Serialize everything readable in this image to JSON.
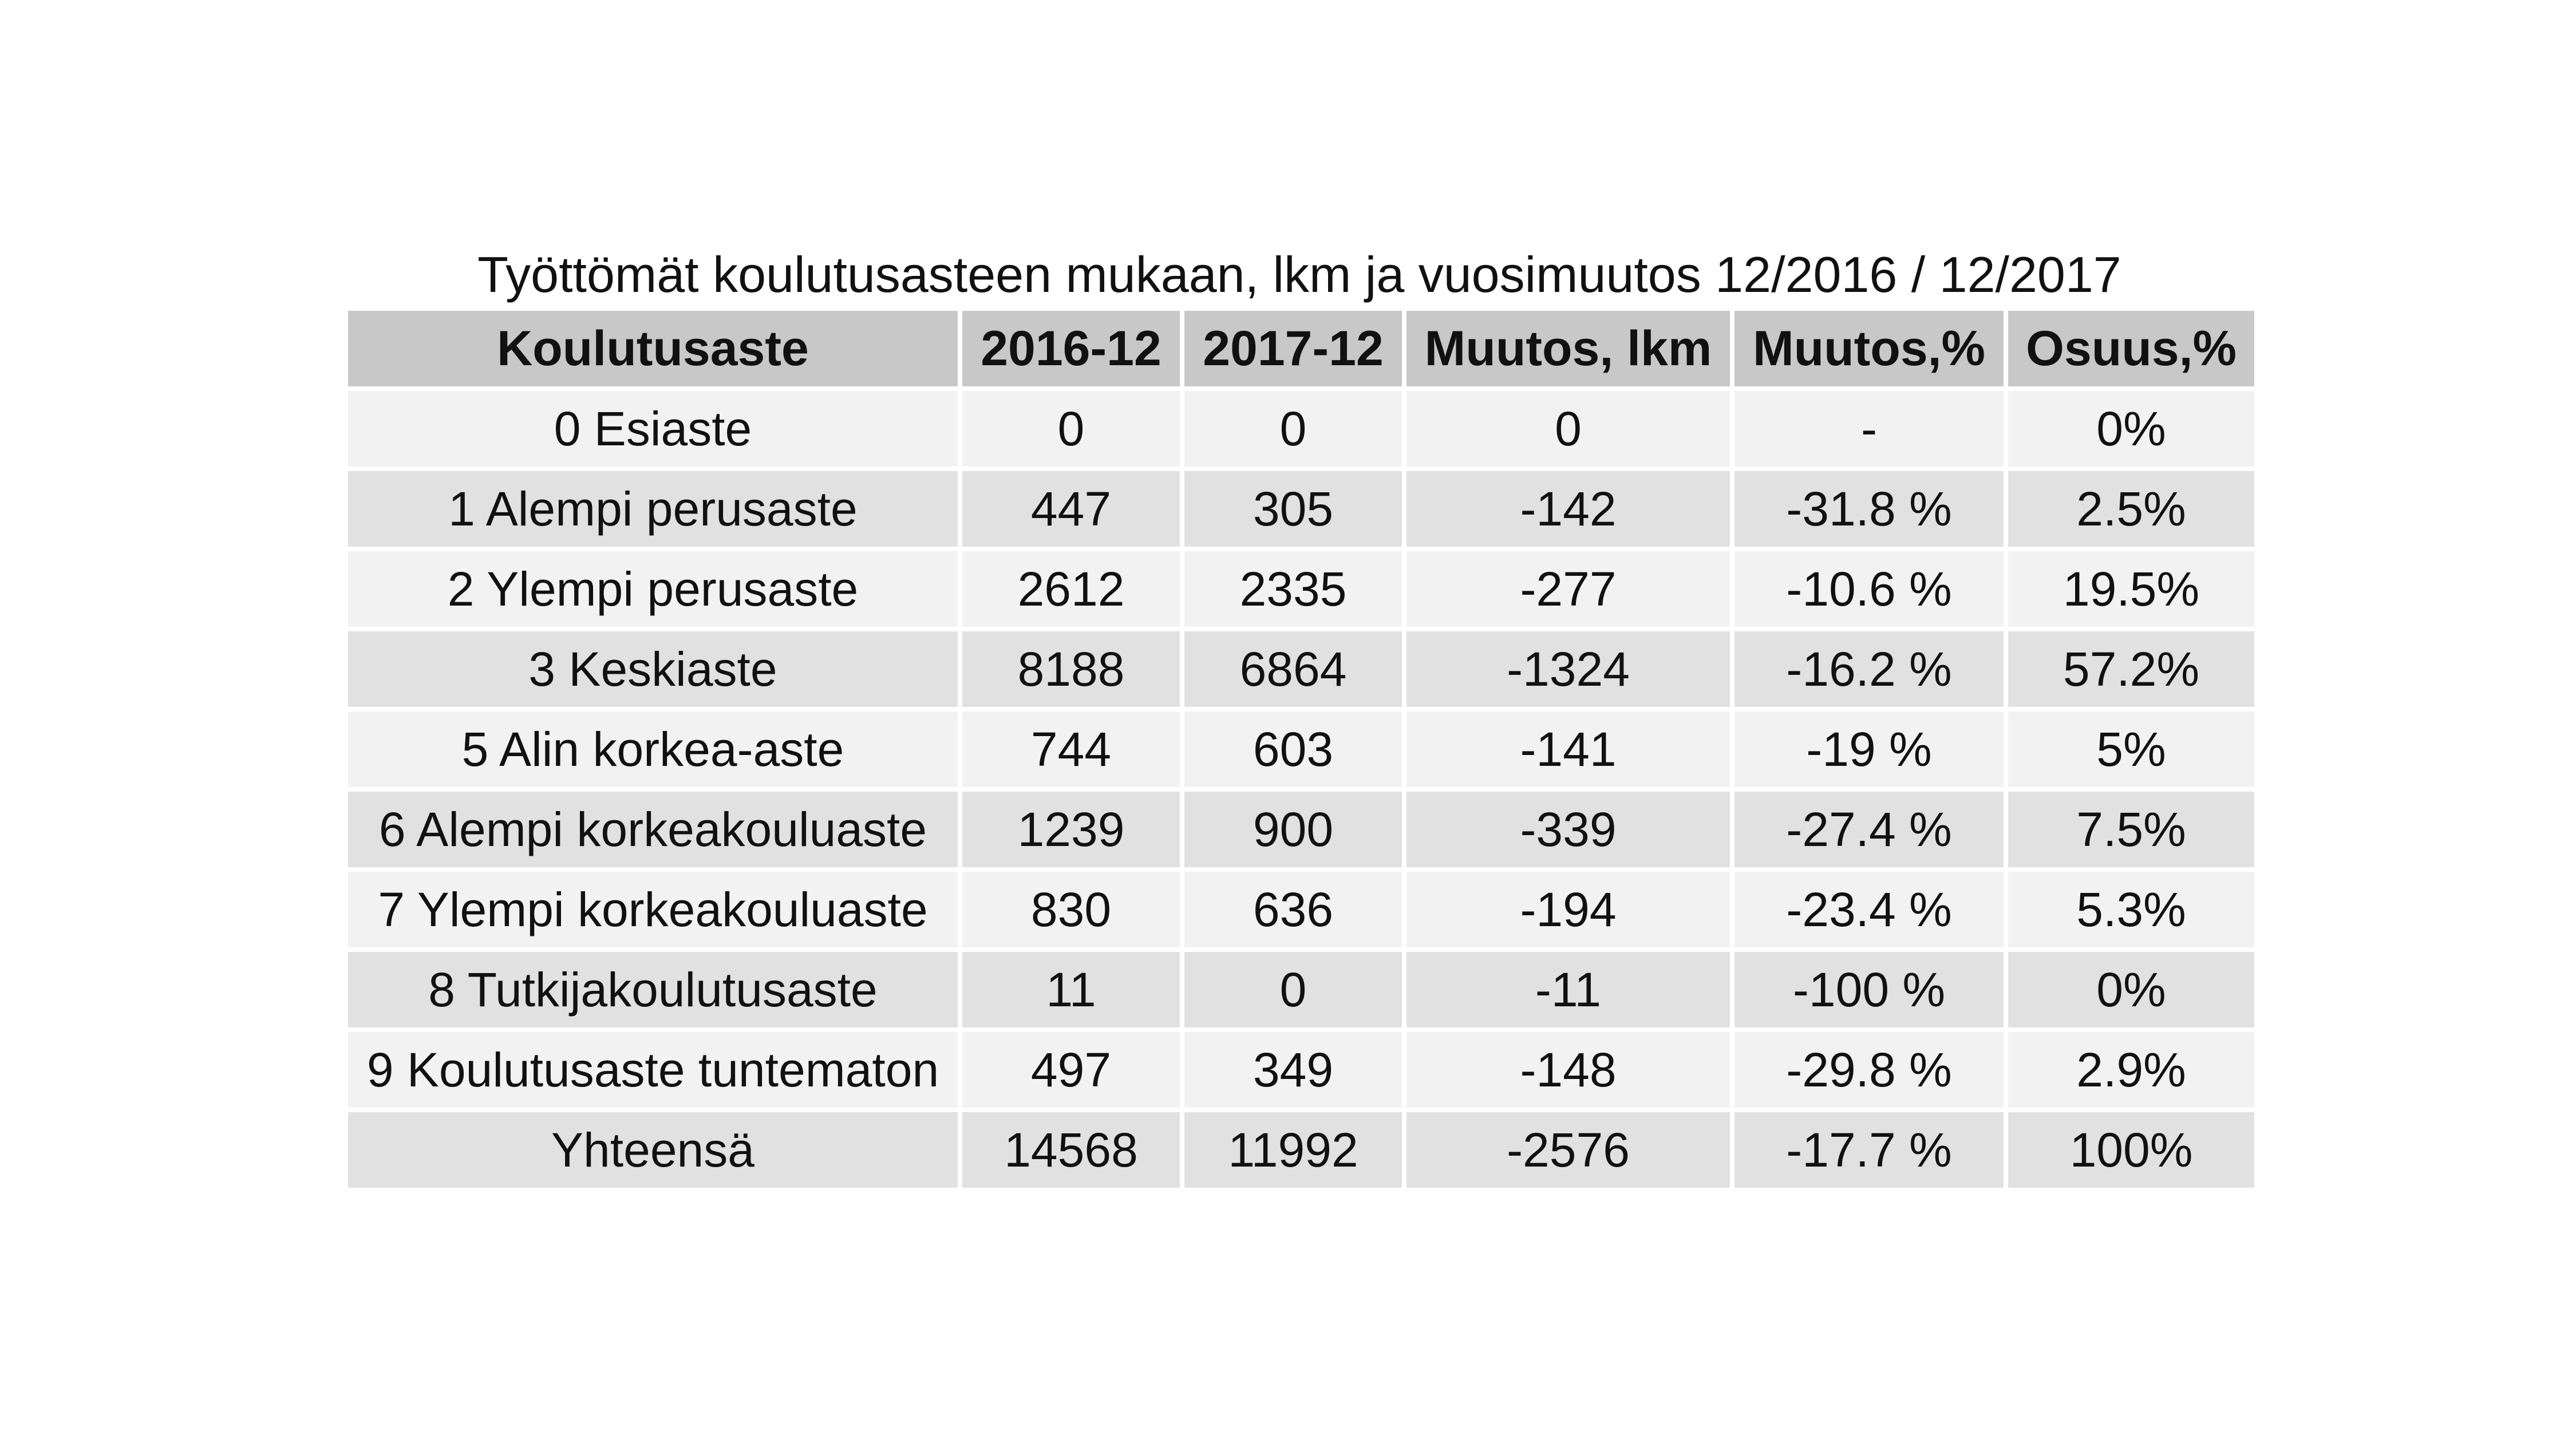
{
  "chart_data": {
    "type": "table",
    "title": "Työttömät koulutusasteen mukaan, lkm ja vuosimuutos 12/2016 / 12/2017",
    "columns": [
      "Koulutusaste",
      "2016-12",
      "2017-12",
      "Muutos, lkm",
      "Muutos,%",
      "Osuus,%"
    ],
    "rows": [
      [
        "0 Esiaste",
        "0",
        "0",
        "0",
        "-",
        "0%"
      ],
      [
        "1 Alempi perusaste",
        "447",
        "305",
        "-142",
        "-31.8 %",
        "2.5%"
      ],
      [
        "2 Ylempi perusaste",
        "2612",
        "2335",
        "-277",
        "-10.6 %",
        "19.5%"
      ],
      [
        "3 Keskiaste",
        "8188",
        "6864",
        "-1324",
        "-16.2 %",
        "57.2%"
      ],
      [
        "5 Alin korkea-aste",
        "744",
        "603",
        "-141",
        "-19 %",
        "5%"
      ],
      [
        "6 Alempi korkeakouluaste",
        "1239",
        "900",
        "-339",
        "-27.4 %",
        "7.5%"
      ],
      [
        "7 Ylempi korkeakouluaste",
        "830",
        "636",
        "-194",
        "-23.4 %",
        "5.3%"
      ],
      [
        "8 Tutkijakoulutusaste",
        "11",
        "0",
        "-11",
        "-100 %",
        "0%"
      ],
      [
        "9 Koulutusaste tuntematon",
        "497",
        "349",
        "-148",
        "-29.8 %",
        "2.9%"
      ],
      [
        "Yhteensä",
        "14568",
        "11992",
        "-2576",
        "-17.7  %",
        "100%"
      ]
    ],
    "colors": {
      "header_bg": "#c8c8c8",
      "row_light": "#f2f2f2",
      "row_dark": "#e1e1e1"
    }
  }
}
